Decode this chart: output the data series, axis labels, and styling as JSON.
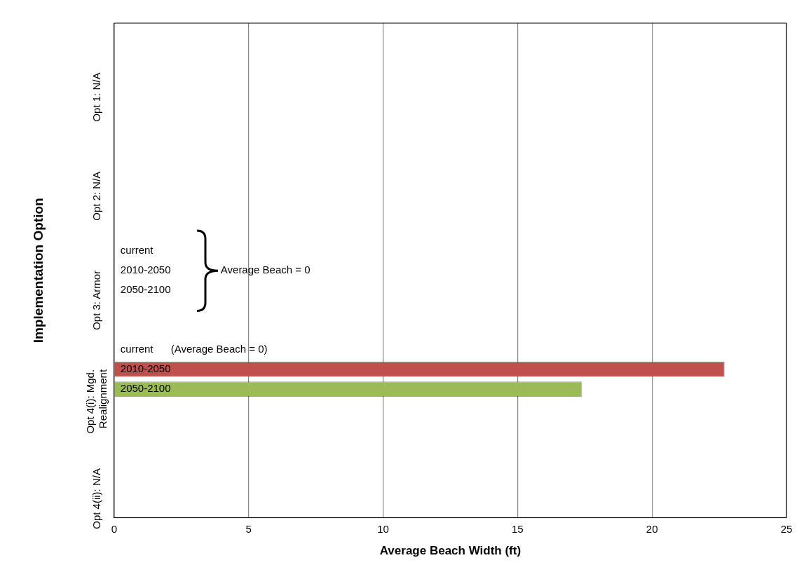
{
  "chart_data": {
    "type": "bar",
    "orientation": "horizontal",
    "xlabel": "Average Beach Width (ft)",
    "ylabel": "Implementation Option",
    "categories": [
      "Opt 1: N/A",
      "Opt 2: N/A",
      "Opt 3: Armor",
      "Opt 4(i): Mgd. Realignment",
      "Opt 4(ii): N/A"
    ],
    "series": [
      {
        "name": "current",
        "values": [
          null,
          null,
          0,
          0,
          null
        ]
      },
      {
        "name": "2010-2050",
        "color": "#c0504d",
        "values": [
          null,
          null,
          0,
          22.7,
          null
        ]
      },
      {
        "name": "2050-2100",
        "color": "#9bbb59",
        "values": [
          null,
          null,
          0,
          17.4,
          null
        ]
      }
    ],
    "xlim": [
      0,
      25
    ],
    "xticks": [
      0,
      5,
      10,
      15,
      20,
      25
    ],
    "grid": "x",
    "legend": false,
    "annotations": [
      "Average Beach = 0",
      "(Average Beach = 0)"
    ]
  }
}
